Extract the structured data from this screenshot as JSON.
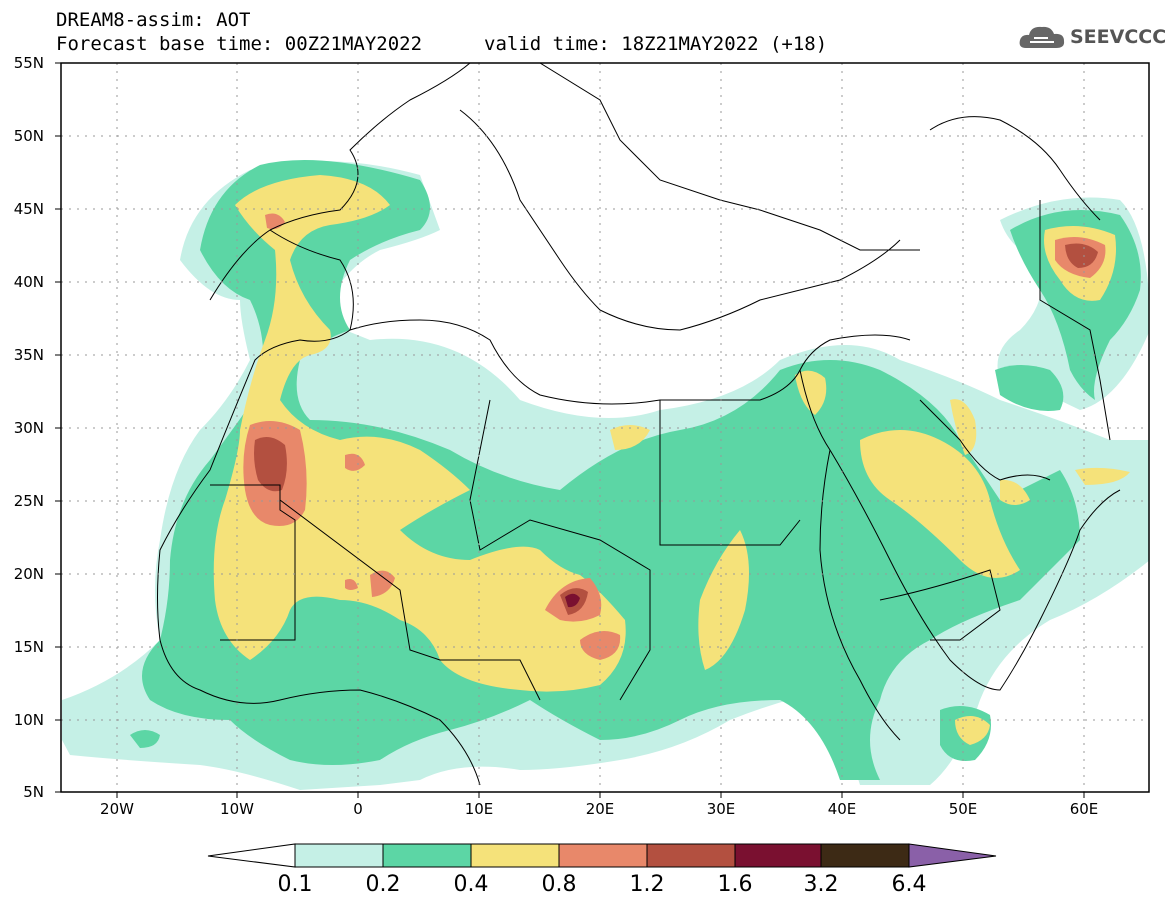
{
  "header": {
    "line1": "DREAM8-assim: AOT",
    "line2_base": "Forecast base time: 00Z21MAY2022",
    "line2_valid": "valid time: 18Z21MAY2022 (+18)"
  },
  "logo": {
    "text": "SEEVCCC",
    "icon": "cloud-icon"
  },
  "axes": {
    "y_ticks": [
      "55N",
      "50N",
      "45N",
      "40N",
      "35N",
      "30N",
      "25N",
      "20N",
      "15N",
      "10N",
      "5N"
    ],
    "x_ticks": [
      "20W",
      "10W",
      "0",
      "10E",
      "20E",
      "30E",
      "40E",
      "50E",
      "60E"
    ]
  },
  "colorbar": {
    "labels": [
      "0.1",
      "0.2",
      "0.4",
      "0.8",
      "1.2",
      "1.6",
      "3.2",
      "6.4"
    ],
    "colors": [
      "#ffffff",
      "#c5f0e6",
      "#5cd6a5",
      "#f5e27a",
      "#e8886a",
      "#b35040",
      "#7a1030",
      "#3d2a15",
      "#8a60a8"
    ]
  },
  "map": {
    "lon_range": [
      -25,
      65
    ],
    "lat_range": [
      5,
      55
    ],
    "grid": "dotted"
  }
}
